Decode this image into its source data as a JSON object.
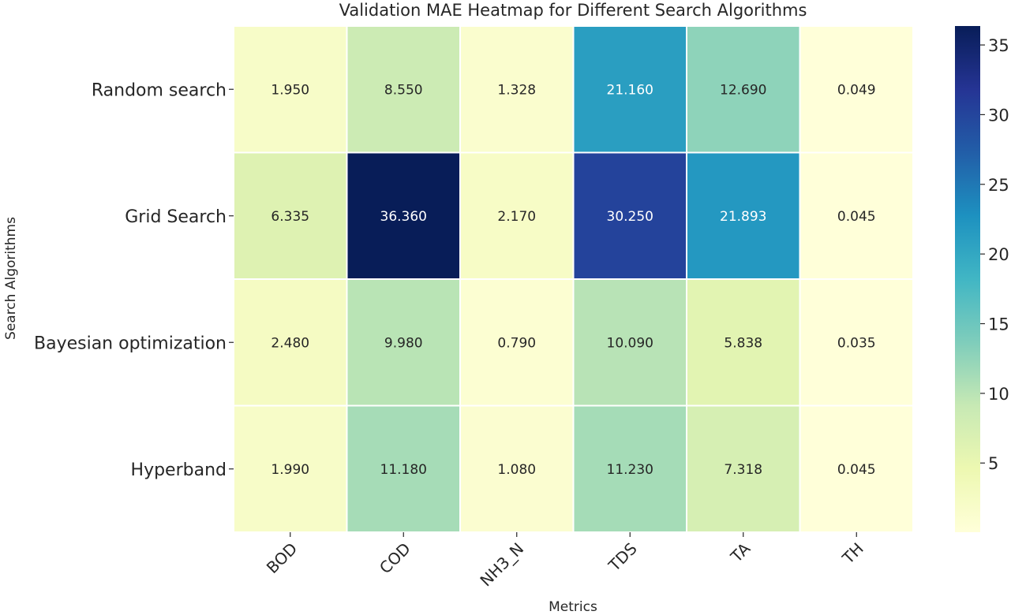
{
  "chart_data": {
    "type": "heatmap",
    "title": "Validation MAE Heatmap for Different Search Algorithms",
    "xlabel": "Metrics",
    "ylabel": "Search Algorithms",
    "columns": [
      "BOD",
      "COD",
      "NH3_N",
      "TDS",
      "TA",
      "TH"
    ],
    "rows": [
      "Random search",
      "Grid Search",
      "Bayesian optimization",
      "Hyperband"
    ],
    "values": [
      [
        1.95,
        8.55,
        1.328,
        21.16,
        12.69,
        0.049
      ],
      [
        6.335,
        36.36,
        2.17,
        30.25,
        21.893,
        0.045
      ],
      [
        2.48,
        9.98,
        0.79,
        10.09,
        5.838,
        0.035
      ],
      [
        1.99,
        11.18,
        1.08,
        11.23,
        7.318,
        0.045
      ]
    ],
    "annotations": [
      [
        "1.950",
        "8.550",
        "1.328",
        "21.160",
        "12.690",
        "0.049"
      ],
      [
        "6.335",
        "36.360",
        "2.170",
        "30.250",
        "21.893",
        "0.045"
      ],
      [
        "2.480",
        "9.980",
        "0.790",
        "10.090",
        "5.838",
        "0.035"
      ],
      [
        "1.990",
        "11.180",
        "1.080",
        "11.230",
        "7.318",
        "0.045"
      ]
    ],
    "colormap": "YlGnBu",
    "vmin": 0.035,
    "vmax": 36.36,
    "colorbar_ticks": [
      5,
      10,
      15,
      20,
      25,
      30,
      35
    ],
    "colorbar_tick_labels": [
      "5",
      "10",
      "15",
      "20",
      "25",
      "30",
      "35"
    ]
  }
}
